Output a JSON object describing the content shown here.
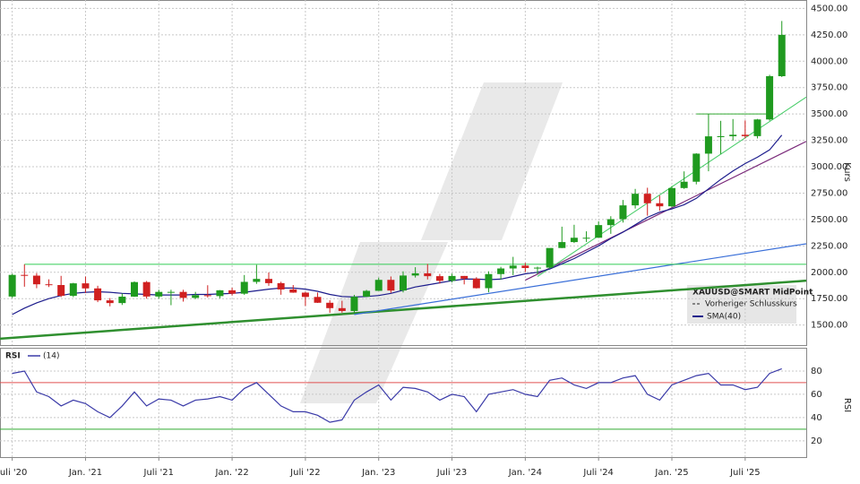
{
  "chart_data": [
    {
      "type": "candlestick",
      "axis_label": "Kurs",
      "up_color": "#1f9a1f",
      "down_color": "#d02020",
      "grid": true,
      "series_name": "XAUUSD@SMART MidPoint",
      "reference_name": "Vorheriger Schlusskurs",
      "xlim": [
        "2020-06",
        "2025-12"
      ],
      "ylim": [
        1310,
        4580
      ],
      "xticks": [
        {
          "value": "2020-07",
          "label": "Juli '20"
        },
        {
          "value": "2021-01",
          "label": "Jan. '21"
        },
        {
          "value": "2021-07",
          "label": "Juli '21"
        },
        {
          "value": "2022-01",
          "label": "Jan. '22"
        },
        {
          "value": "2022-07",
          "label": "Juli '22"
        },
        {
          "value": "2023-01",
          "label": "Jan. '23"
        },
        {
          "value": "2023-07",
          "label": "Juli '23"
        },
        {
          "value": "2024-01",
          "label": "Jan. '24"
        },
        {
          "value": "2024-07",
          "label": "Juli '24"
        },
        {
          "value": "2025-01",
          "label": "Jan. '25"
        },
        {
          "value": "2025-07",
          "label": "Juli '25"
        }
      ],
      "yticks": [
        {
          "value": 1500,
          "label": "1500.00"
        },
        {
          "value": 1750,
          "label": "1750.00"
        },
        {
          "value": 2000,
          "label": "2000.00"
        },
        {
          "value": 2250,
          "label": "2250.00"
        },
        {
          "value": 2500,
          "label": "2500.00"
        },
        {
          "value": 2750,
          "label": "2750.00"
        },
        {
          "value": 3000,
          "label": "3000.00"
        },
        {
          "value": 3250,
          "label": "3250.00"
        },
        {
          "value": 3500,
          "label": "3500.00"
        },
        {
          "value": 3750,
          "label": "3750.00"
        },
        {
          "value": 4000,
          "label": "4000.00"
        },
        {
          "value": 4250,
          "label": "4250.00"
        },
        {
          "value": 4500,
          "label": "4500.00"
        }
      ],
      "x": [
        "2020-07",
        "2020-08",
        "2020-09",
        "2020-10",
        "2020-11",
        "2020-12",
        "2021-01",
        "2021-02",
        "2021-03",
        "2021-04",
        "2021-05",
        "2021-06",
        "2021-07",
        "2021-08",
        "2021-09",
        "2021-10",
        "2021-11",
        "2021-12",
        "2022-01",
        "2022-02",
        "2022-03",
        "2022-04",
        "2022-05",
        "2022-06",
        "2022-07",
        "2022-08",
        "2022-09",
        "2022-10",
        "2022-11",
        "2022-12",
        "2023-01",
        "2023-02",
        "2023-03",
        "2023-04",
        "2023-05",
        "2023-06",
        "2023-07",
        "2023-08",
        "2023-09",
        "2023-10",
        "2023-11",
        "2023-12",
        "2024-01",
        "2024-02",
        "2024-03",
        "2024-04",
        "2024-05",
        "2024-06",
        "2024-07",
        "2024-08",
        "2024-09",
        "2024-10",
        "2024-11",
        "2024-12",
        "2025-01",
        "2025-02",
        "2025-03",
        "2025-04",
        "2025-05",
        "2025-06",
        "2025-07",
        "2025-08",
        "2025-09",
        "2025-10"
      ],
      "open": [
        1770,
        1975,
        1968,
        1886,
        1879,
        1777,
        1895,
        1847,
        1734,
        1708,
        1769,
        1907,
        1770,
        1814,
        1814,
        1757,
        1783,
        1774,
        1829,
        1797,
        1909,
        1937,
        1897,
        1837,
        1807,
        1766,
        1711,
        1660,
        1633,
        1768,
        1824,
        1928,
        1827,
        1969,
        1990,
        1963,
        1919,
        1965,
        1940,
        1849,
        1983,
        2036,
        2063,
        2040,
        2044,
        2230,
        2286,
        2327,
        2327,
        2447,
        2503,
        2634,
        2744,
        2654,
        2625,
        2798,
        2858,
        3124,
        3288,
        3289,
        3303,
        3290,
        3448,
        3858
      ],
      "high": [
        1985,
        2075,
        1992,
        1933,
        1966,
        1900,
        1959,
        1872,
        1755,
        1798,
        1913,
        1917,
        1834,
        1834,
        1834,
        1814,
        1877,
        1831,
        1853,
        1974,
        2070,
        1998,
        1910,
        1879,
        1814,
        1808,
        1735,
        1730,
        1786,
        1833,
        1949,
        1960,
        2009,
        2048,
        2079,
        1984,
        1987,
        1965,
        1953,
        2009,
        2052,
        2146,
        2088,
        2053,
        2223,
        2432,
        2450,
        2388,
        2483,
        2531,
        2685,
        2790,
        2801,
        2726,
        2817,
        2956,
        3128,
        3500,
        3435,
        3452,
        3439,
        3453,
        3871,
        4381
      ],
      "low": [
        1757,
        1863,
        1849,
        1860,
        1765,
        1764,
        1803,
        1717,
        1677,
        1690,
        1766,
        1750,
        1751,
        1688,
        1722,
        1746,
        1761,
        1753,
        1780,
        1786,
        1890,
        1872,
        1787,
        1805,
        1681,
        1709,
        1615,
        1617,
        1616,
        1765,
        1823,
        1805,
        1809,
        1950,
        1932,
        1893,
        1903,
        1885,
        1846,
        1810,
        1931,
        1973,
        2002,
        1984,
        2039,
        2229,
        2277,
        2287,
        2353,
        2364,
        2471,
        2604,
        2536,
        2583,
        2614,
        2790,
        2833,
        2957,
        3120,
        3247,
        3268,
        3268,
        3436,
        3850
      ],
      "close": [
        1975,
        1968,
        1886,
        1879,
        1777,
        1895,
        1847,
        1734,
        1708,
        1769,
        1907,
        1770,
        1814,
        1814,
        1757,
        1783,
        1774,
        1829,
        1797,
        1909,
        1937,
        1897,
        1837,
        1807,
        1766,
        1711,
        1660,
        1633,
        1768,
        1824,
        1928,
        1827,
        1969,
        1990,
        1963,
        1919,
        1965,
        1940,
        1849,
        1983,
        2036,
        2063,
        2040,
        2044,
        2230,
        2286,
        2327,
        2327,
        2447,
        2503,
        2634,
        2744,
        2654,
        2625,
        2798,
        2858,
        3124,
        3288,
        3289,
        3303,
        3290,
        3448,
        3858,
        4250
      ],
      "sma": {
        "name": "SMA(40)",
        "color": "#1c1c8c",
        "values": [
          1600,
          1660,
          1710,
          1750,
          1780,
          1800,
          1810,
          1815,
          1810,
          1800,
          1795,
          1790,
          1785,
          1785,
          1785,
          1790,
          1790,
          1795,
          1800,
          1810,
          1825,
          1840,
          1850,
          1850,
          1840,
          1820,
          1790,
          1770,
          1765,
          1770,
          1780,
          1800,
          1830,
          1860,
          1880,
          1900,
          1920,
          1935,
          1935,
          1930,
          1935,
          1960,
          1985,
          2000,
          2030,
          2080,
          2130,
          2190,
          2250,
          2320,
          2380,
          2450,
          2520,
          2570,
          2600,
          2640,
          2700,
          2790,
          2880,
          2960,
          3030,
          3090,
          3160,
          3300
        ]
      },
      "trendlines": [
        {
          "color": "#2f8f2f",
          "width": 2.5,
          "x": [
            "2020-06",
            "2025-12"
          ],
          "y": [
            1370,
            1920
          ]
        },
        {
          "color": "#3a6fd8",
          "width": 1.2,
          "x": [
            "2022-11",
            "2025-12"
          ],
          "y": [
            1600,
            2270
          ]
        },
        {
          "color": "#33cc55",
          "width": 1,
          "x": [
            "2020-08",
            "2025-12"
          ],
          "y": [
            2075,
            2075
          ]
        },
        {
          "color": "#7a2a7a",
          "width": 1.2,
          "x": [
            "2024-01",
            "2025-12"
          ],
          "y": [
            1925,
            3240
          ]
        },
        {
          "color": "#44cc66",
          "width": 1,
          "x": [
            "2024-02",
            "2025-12"
          ],
          "y": [
            1960,
            3660
          ]
        },
        {
          "color": "#33aa33",
          "width": 1,
          "x": [
            "2025-03",
            "2025-09"
          ],
          "y": [
            3500,
            3500
          ]
        }
      ]
    },
    {
      "type": "line",
      "title": "RSI",
      "axis_label": "RSI",
      "grid": true,
      "xlim": [
        "2020-06",
        "2025-12"
      ],
      "ylim": [
        6,
        100
      ],
      "yticks": [
        20,
        40,
        60,
        80
      ],
      "levels": [
        {
          "value": 70,
          "color": "#e05050"
        },
        {
          "value": 30,
          "color": "#33aa33"
        }
      ],
      "x": [
        "2020-07",
        "2020-08",
        "2020-09",
        "2020-10",
        "2020-11",
        "2020-12",
        "2021-01",
        "2021-02",
        "2021-03",
        "2021-04",
        "2021-05",
        "2021-06",
        "2021-07",
        "2021-08",
        "2021-09",
        "2021-10",
        "2021-11",
        "2021-12",
        "2022-01",
        "2022-02",
        "2022-03",
        "2022-04",
        "2022-05",
        "2022-06",
        "2022-07",
        "2022-08",
        "2022-09",
        "2022-10",
        "2022-11",
        "2022-12",
        "2023-01",
        "2023-02",
        "2023-03",
        "2023-04",
        "2023-05",
        "2023-06",
        "2023-07",
        "2023-08",
        "2023-09",
        "2023-10",
        "2023-11",
        "2023-12",
        "2024-01",
        "2024-02",
        "2024-03",
        "2024-04",
        "2024-05",
        "2024-06",
        "2024-07",
        "2024-08",
        "2024-09",
        "2024-10",
        "2024-11",
        "2024-12",
        "2025-01",
        "2025-02",
        "2025-03",
        "2025-04",
        "2025-05",
        "2025-06",
        "2025-07",
        "2025-08",
        "2025-09",
        "2025-10"
      ],
      "series": [
        {
          "name": "(14)",
          "color": "#3a3aa8",
          "values": [
            78,
            80,
            62,
            58,
            50,
            55,
            52,
            45,
            40,
            50,
            62,
            50,
            56,
            55,
            50,
            55,
            56,
            58,
            55,
            65,
            70,
            60,
            50,
            45,
            45,
            42,
            36,
            38,
            55,
            62,
            68,
            55,
            66,
            65,
            62,
            55,
            60,
            58,
            45,
            60,
            62,
            64,
            60,
            58,
            72,
            74,
            68,
            65,
            70,
            70,
            74,
            76,
            60,
            55,
            68,
            72,
            76,
            78,
            68,
            68,
            64,
            66,
            78,
            82
          ]
        }
      ]
    }
  ]
}
